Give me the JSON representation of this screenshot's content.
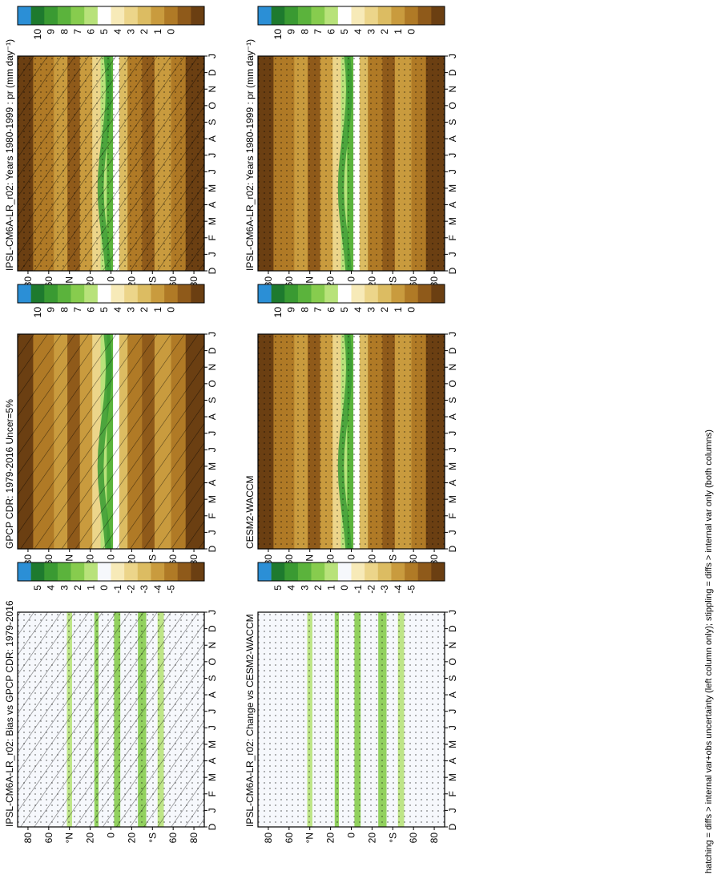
{
  "footnote": "hatching = diffs > internal var+obs uncertainty (left column only); stippling = diffs > internal var only (both columns)",
  "months": [
    "D",
    "J",
    "F",
    "M",
    "A",
    "M",
    "J",
    "J",
    "A",
    "S",
    "O",
    "N",
    "D",
    "J"
  ],
  "lat_ticks": [
    "80",
    "60",
    "°N",
    "20",
    "0",
    "20",
    "°S",
    "60",
    "80"
  ],
  "scales": {
    "abs": {
      "ticks": [
        "10",
        "9",
        "8",
        "7",
        "6",
        "5",
        "4",
        "3",
        "2",
        "1",
        "0"
      ],
      "colors": [
        "#2b8fd6",
        "#1e7a2e",
        "#3a9a32",
        "#5bb33c",
        "#87cc4e",
        "#b8e27a",
        "#ffffff",
        "#f7eab8",
        "#ecd58a",
        "#dcbc62",
        "#c99b3e",
        "#b07a26",
        "#8f5a1a",
        "#6b3f12"
      ]
    },
    "diff": {
      "ticks": [
        "5",
        "4",
        "3",
        "2",
        "1",
        "0",
        "-1",
        "-2",
        "-3",
        "-4",
        "-5"
      ],
      "colors": [
        "#2b8fd6",
        "#1e7a2e",
        "#3a9a32",
        "#5bb33c",
        "#87cc4e",
        "#b8e27a",
        "#f6f8fc",
        "#f7eab8",
        "#ecd58a",
        "#dcbc62",
        "#c99b3e",
        "#b07a26",
        "#8f5a1a",
        "#6b3f12"
      ]
    }
  },
  "chart_data": [
    {
      "type": "heatmap",
      "title": "IPSL-CM6A-LR_r02: Years 1980-1999 : pr (mm day⁻¹)",
      "x_axis": "month (Dec-Jan)",
      "y_axis": "latitude (90N-90S)",
      "scale": "abs",
      "hatching": true,
      "stippling": true
    },
    {
      "type": "heatmap",
      "title": "IPSL-CM6A-LR_r02: Years 1980-1999 : pr (mm day⁻¹)",
      "x_axis": "month (Dec-Jan)",
      "y_axis": "latitude (90N-90S)",
      "scale": "abs",
      "hatching": false,
      "stippling": true
    },
    {
      "type": "heatmap",
      "title": "GPCP CDR: 1979-2016 Uncer=5%",
      "x_axis": "month (Dec-Jan)",
      "y_axis": "latitude (90N-90S)",
      "scale": "abs",
      "hatching": true,
      "stippling": false
    },
    {
      "type": "heatmap",
      "title": "CESM2-WACCM",
      "x_axis": "month (Dec-Jan)",
      "y_axis": "latitude (90N-90S)",
      "scale": "abs",
      "hatching": false,
      "stippling": true
    },
    {
      "type": "heatmap",
      "title": "IPSL-CM6A-LR_r02: Bias vs GPCP CDR: 1979-2016",
      "x_axis": "month (Dec-Jan)",
      "y_axis": "latitude (90N-90S)",
      "scale": "diff",
      "hatching": true,
      "stippling": true
    },
    {
      "type": "heatmap",
      "title": "IPSL-CM6A-LR_r02: Change vs CESM2-WACCM",
      "x_axis": "month (Dec-Jan)",
      "y_axis": "latitude (90N-90S)",
      "scale": "diff",
      "hatching": false,
      "stippling": true
    }
  ]
}
